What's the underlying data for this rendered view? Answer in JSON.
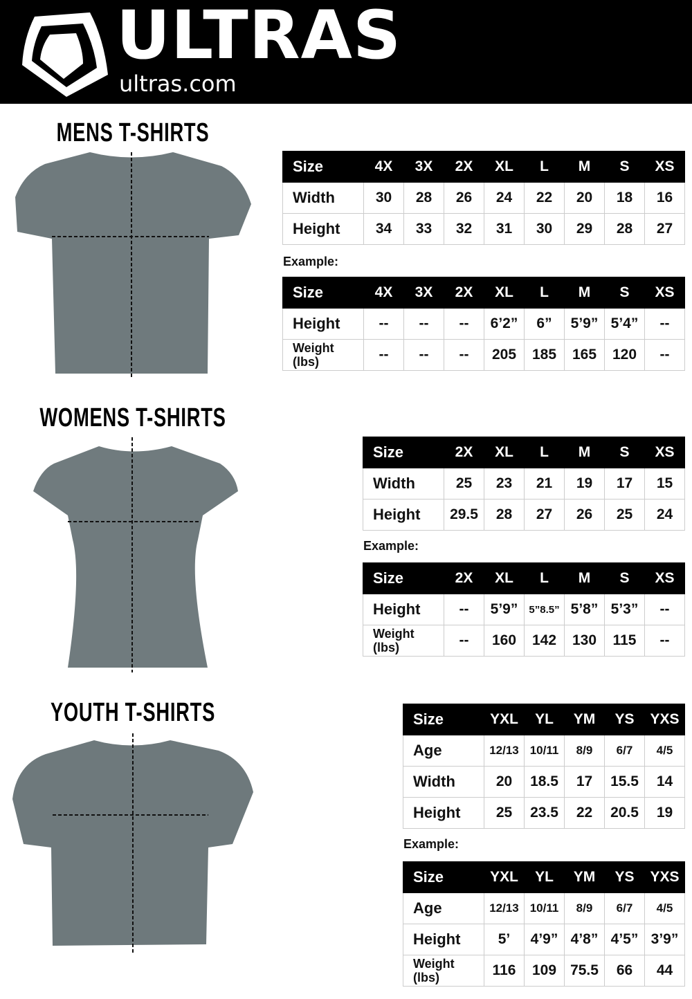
{
  "brand": {
    "name": "ULTRAS",
    "url": "ultras.com",
    "logo": "shield-logo"
  },
  "example_label": "Example:",
  "sections": [
    {
      "title": "MENS T-SHIRTS",
      "tables": [
        {
          "rows": [
            [
              "Size",
              "4X",
              "3X",
              "2X",
              "XL",
              "L",
              "M",
              "S",
              "XS"
            ],
            [
              "Width",
              "30",
              "28",
              "26",
              "24",
              "22",
              "20",
              "18",
              "16"
            ],
            [
              "Height",
              "34",
              "33",
              "32",
              "31",
              "30",
              "29",
              "28",
              "27"
            ]
          ]
        },
        {
          "rows": [
            [
              "Size",
              "4X",
              "3X",
              "2X",
              "XL",
              "L",
              "M",
              "S",
              "XS"
            ],
            [
              "Height",
              "--",
              "--",
              "--",
              "6’2”",
              "6”",
              "5’9”",
              "5’4”",
              "--"
            ],
            [
              "Weight (lbs)",
              "--",
              "--",
              "--",
              "205",
              "185",
              "165",
              "120",
              "--"
            ]
          ]
        }
      ]
    },
    {
      "title": "WOMENS T-SHIRTS",
      "tables": [
        {
          "rows": [
            [
              "Size",
              "2X",
              "XL",
              "L",
              "M",
              "S",
              "XS"
            ],
            [
              "Width",
              "25",
              "23",
              "21",
              "19",
              "17",
              "15"
            ],
            [
              "Height",
              "29.5",
              "28",
              "27",
              "26",
              "25",
              "24"
            ]
          ]
        },
        {
          "rows": [
            [
              "Size",
              "2X",
              "XL",
              "L",
              "M",
              "S",
              "XS"
            ],
            [
              "Height",
              "--",
              "5’9”",
              "5”8.5”",
              "5’8”",
              "5’3”",
              "--"
            ],
            [
              "Weight (lbs)",
              "--",
              "160",
              "142",
              "130",
              "115",
              "--"
            ]
          ]
        }
      ]
    },
    {
      "title": "YOUTH T-SHIRTS",
      "tables": [
        {
          "rows": [
            [
              "Size",
              "YXL",
              "YL",
              "YM",
              "YS",
              "YXS"
            ],
            [
              "Age",
              "12/13",
              "10/11",
              "8/9",
              "6/7",
              "4/5"
            ],
            [
              "Width",
              "20",
              "18.5",
              "17",
              "15.5",
              "14"
            ],
            [
              "Height",
              "25",
              "23.5",
              "22",
              "20.5",
              "19"
            ]
          ]
        },
        {
          "rows": [
            [
              "Size",
              "YXL",
              "YL",
              "YM",
              "YS",
              "YXS"
            ],
            [
              "Age",
              "12/13",
              "10/11",
              "8/9",
              "6/7",
              "4/5"
            ],
            [
              "Height",
              "5’",
              "4’9”",
              "4’8”",
              "4’5”",
              "3’9”"
            ],
            [
              "Weight (lbs)",
              "116",
              "109",
              "75.5",
              "66",
              "44"
            ]
          ]
        }
      ]
    }
  ],
  "colors": {
    "header_bg": "#000000",
    "shirt": "#6f7a7d",
    "border": "#cccccc"
  }
}
